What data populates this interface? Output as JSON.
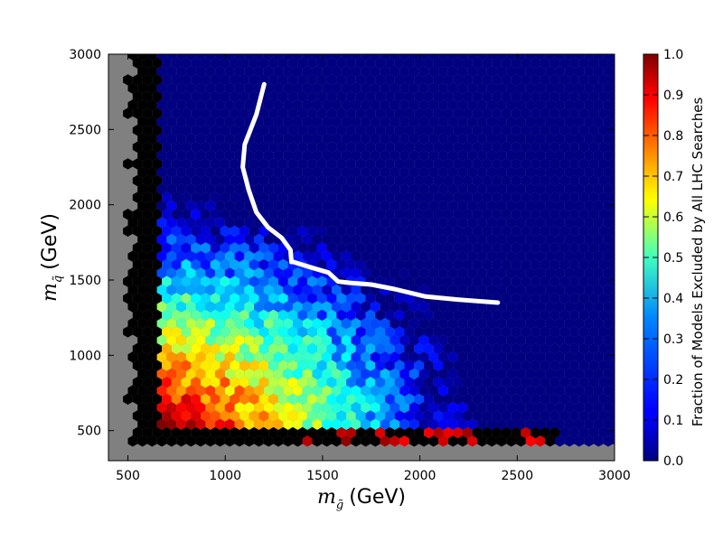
{
  "chart_data": {
    "type": "heatmap",
    "subtype": "hexbin",
    "title": "",
    "x_axis": {
      "label_symbol": "m",
      "label_sub": "g̃",
      "label_unit": "(GeV)",
      "range": [
        400,
        3000
      ],
      "ticks": [
        500,
        1000,
        1500,
        2000,
        2500,
        3000
      ],
      "tick_labels": [
        "500",
        "1000",
        "1500",
        "2000",
        "2500",
        "3000"
      ]
    },
    "y_axis": {
      "label_symbol": "m",
      "label_sub": "q̃",
      "label_unit": "(GeV)",
      "range": [
        300,
        3000
      ],
      "ticks": [
        500,
        1000,
        1500,
        2000,
        2500,
        3000
      ],
      "tick_labels": [
        "500",
        "1000",
        "1500",
        "2000",
        "2500",
        "3000"
      ]
    },
    "colorbar": {
      "label": "Fraction of Models Excluded by All LHC Searches",
      "range": [
        0.0,
        1.0
      ],
      "ticks": [
        0.0,
        0.1,
        0.2,
        0.3,
        0.4,
        0.5,
        0.6,
        0.7,
        0.8,
        0.9,
        1.0
      ],
      "tick_labels": [
        "0.0",
        "0.1",
        "0.2",
        "0.3",
        "0.4",
        "0.5",
        "0.6",
        "0.7",
        "0.8",
        "0.9",
        "1.0"
      ],
      "colormap": "jet"
    },
    "background_color": "#808080",
    "fully_excluded_color": "#000000",
    "region_description": {
      "black_band_x_max": 650,
      "black_band_y_max": 500
    },
    "exclusion_curve": {
      "color": "#ffffff",
      "x": [
        1200,
        1160,
        1100,
        1090,
        1120,
        1160,
        1220,
        1290,
        1335,
        1340,
        1350,
        1450,
        1530,
        1580,
        1650,
        1750,
        1870,
        2030,
        2200,
        2400
      ],
      "y": [
        2800,
        2600,
        2400,
        2250,
        2100,
        1950,
        1850,
        1780,
        1700,
        1620,
        1620,
        1580,
        1550,
        1490,
        1480,
        1470,
        1440,
        1390,
        1370,
        1350
      ]
    }
  }
}
